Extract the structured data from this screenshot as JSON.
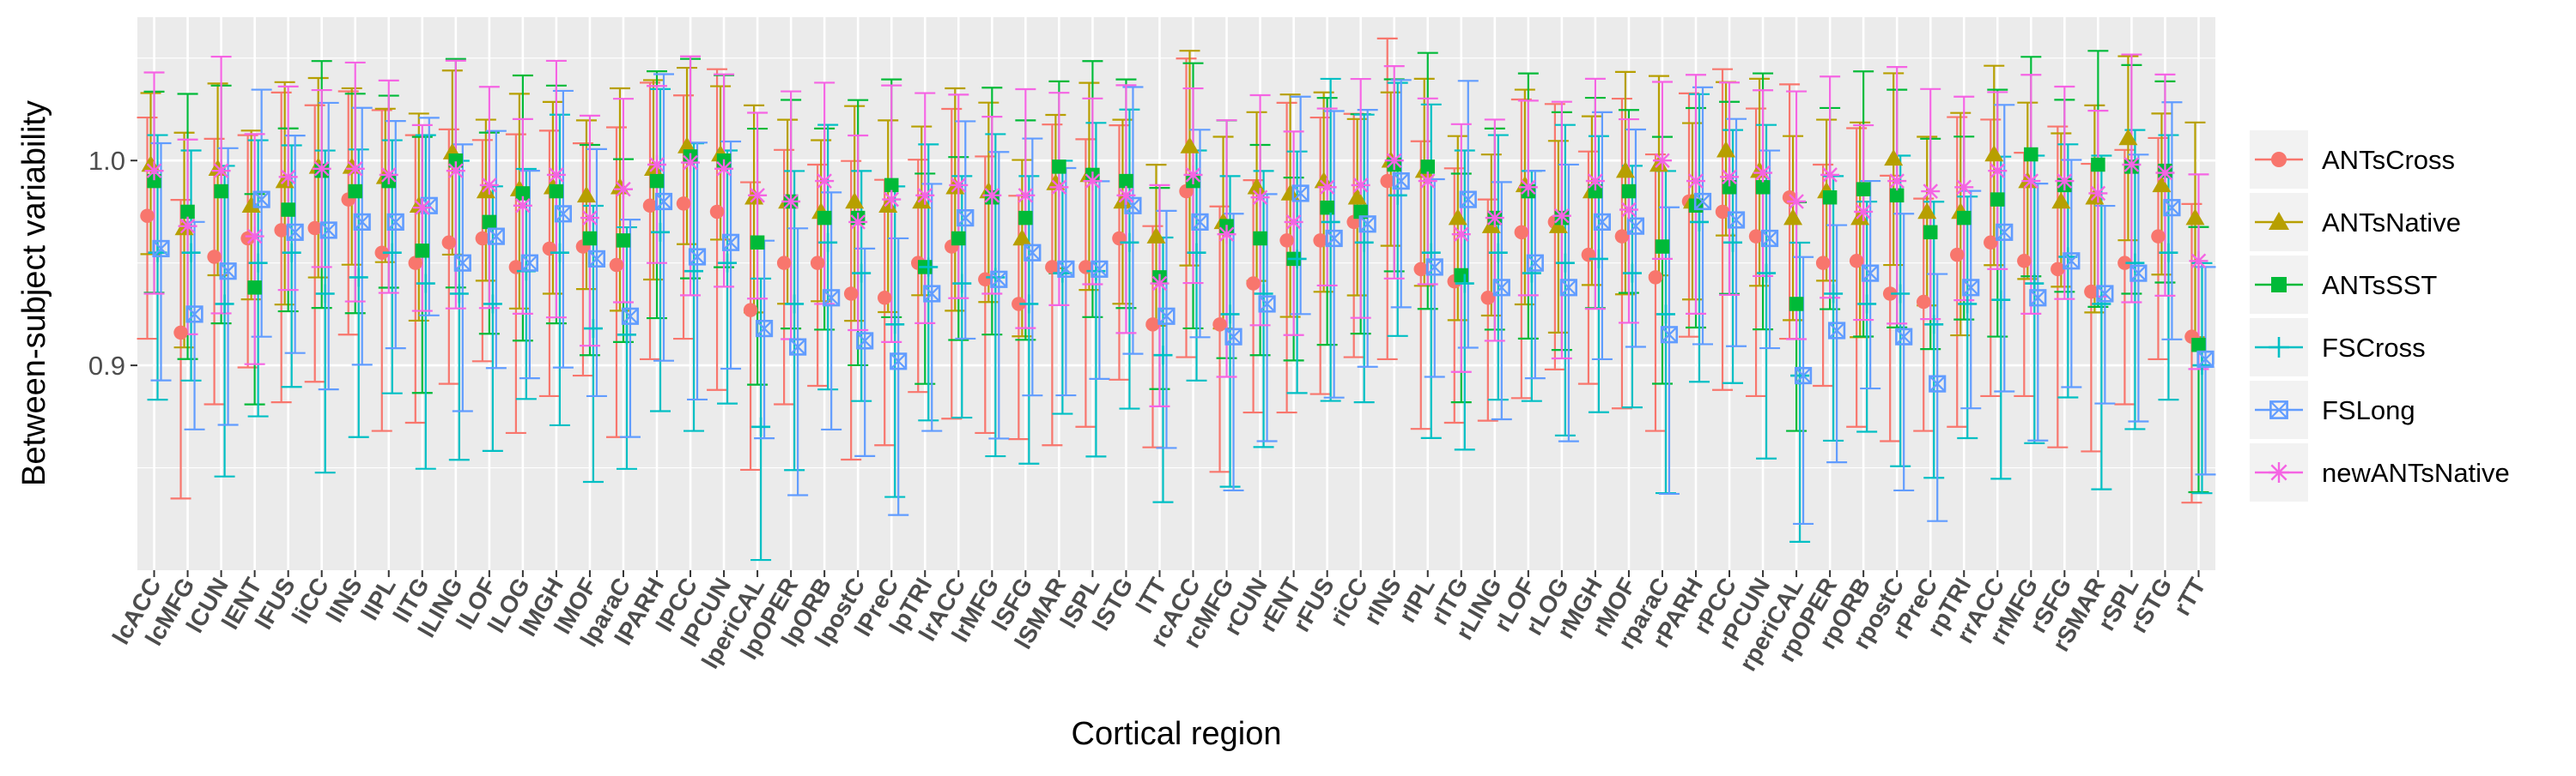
{
  "chart_data": {
    "type": "scatter",
    "xlabel": "Cortical region",
    "ylabel": "Between-subject variability",
    "ylim": [
      0.8,
      1.07
    ],
    "yticks": [
      0.9,
      1.0
    ],
    "yticklabels": [
      "0.9",
      "1.0"
    ],
    "grid": true,
    "legend_position": "right",
    "error_bars": true,
    "categories": [
      "lcACC",
      "lcMFG",
      "lCUN",
      "lENT",
      "lFUS",
      "liCC",
      "lINS",
      "lIPL",
      "lITG",
      "lLING",
      "lLOF",
      "lLOG",
      "lMGH",
      "lMOF",
      "lparaC",
      "lPARH",
      "lPCC",
      "lPCUN",
      "lperiCAL",
      "lpOPER",
      "lpORB",
      "lpostC",
      "lPreC",
      "lpTRI",
      "lrACC",
      "lrMFG",
      "lSFG",
      "lSMAR",
      "lSPL",
      "lSTG",
      "lTT",
      "rcACC",
      "rcMFG",
      "rCUN",
      "rENT",
      "rFUS",
      "riCC",
      "rINS",
      "rIPL",
      "rITG",
      "rLING",
      "rLOF",
      "rLOG",
      "rMGH",
      "rMOF",
      "rparaC",
      "rPARH",
      "rPCC",
      "rPCUN",
      "rperiCAL",
      "rpOPER",
      "rpORB",
      "rpostC",
      "rPreC",
      "rpTRI",
      "rrACC",
      "rrMFG",
      "rSFG",
      "rSMAR",
      "rSPL",
      "rSTG",
      "rTT"
    ],
    "series": [
      {
        "name": "ANTsCross",
        "color": "#F8766D",
        "marker": "circle",
        "values": [
          0.973,
          0.916,
          0.953,
          0.962,
          0.966,
          0.967,
          0.981,
          0.955,
          0.95,
          0.96,
          0.962,
          0.948,
          0.957,
          0.958,
          0.949,
          0.978,
          0.979,
          0.975,
          0.927,
          0.95,
          0.95,
          0.935,
          0.933,
          0.95,
          0.958,
          0.942,
          0.93,
          0.948,
          0.948,
          0.962,
          0.92,
          0.985,
          0.92,
          0.94,
          0.961,
          0.961,
          0.97,
          0.99,
          0.947,
          0.941,
          0.933,
          0.965,
          0.97,
          0.954,
          0.963,
          0.943,
          0.98,
          0.975,
          0.963,
          0.982,
          0.95,
          0.951,
          0.935,
          0.931,
          0.954,
          0.96,
          0.951,
          0.947,
          0.936,
          0.95,
          0.963,
          0.914
        ]
      },
      {
        "name": "ANTsNative",
        "color": "#B79F00",
        "marker": "triangle",
        "values": [
          0.998,
          0.967,
          0.996,
          0.978,
          0.99,
          0.997,
          0.997,
          0.992,
          0.978,
          1.004,
          0.985,
          0.986,
          0.987,
          0.983,
          0.987,
          0.996,
          1.007,
          1.003,
          0.982,
          0.98,
          0.975,
          0.98,
          0.978,
          0.98,
          0.987,
          0.985,
          0.962,
          0.989,
          0.993,
          0.98,
          0.963,
          1.007,
          0.97,
          0.987,
          0.984,
          0.99,
          0.982,
          1.0,
          0.995,
          0.972,
          0.968,
          0.988,
          0.968,
          0.985,
          0.995,
          0.998,
          0.98,
          1.005,
          0.995,
          0.972,
          0.985,
          0.972,
          1.001,
          0.975,
          0.975,
          1.003,
          0.99,
          0.98,
          0.982,
          1.011,
          0.988,
          0.972
        ]
      },
      {
        "name": "ANTsSST",
        "color": "#00BA38",
        "marker": "square",
        "values": [
          0.99,
          0.975,
          0.985,
          0.938,
          0.976,
          0.995,
          0.985,
          0.99,
          0.956,
          1.0,
          0.97,
          0.984,
          0.985,
          0.962,
          0.961,
          0.99,
          1.002,
          1.0,
          0.96,
          0.98,
          0.972,
          0.972,
          0.988,
          0.948,
          0.962,
          0.982,
          0.972,
          0.997,
          0.993,
          0.99,
          0.943,
          0.99,
          0.968,
          0.962,
          0.952,
          0.977,
          0.975,
          0.998,
          0.997,
          0.944,
          0.972,
          0.985,
          0.972,
          0.985,
          0.985,
          0.958,
          0.978,
          0.987,
          0.987,
          0.93,
          0.982,
          0.986,
          0.983,
          0.965,
          0.972,
          0.981,
          1.003,
          0.988,
          0.998,
          0.997,
          0.995,
          0.91
        ]
      },
      {
        "name": "FSCross",
        "color": "#00BFC4",
        "marker": "plus",
        "values": [
          0.955,
          0.955,
          0.93,
          0.95,
          0.955,
          0.935,
          0.943,
          0.955,
          0.94,
          0.935,
          0.93,
          0.946,
          0.955,
          0.918,
          0.915,
          0.965,
          0.946,
          0.95,
          0.87,
          0.93,
          0.96,
          0.945,
          0.92,
          0.948,
          0.94,
          0.943,
          0.93,
          0.945,
          0.946,
          0.96,
          0.905,
          0.955,
          0.925,
          0.935,
          0.952,
          0.97,
          0.96,
          0.983,
          0.955,
          0.94,
          0.955,
          0.945,
          0.95,
          0.952,
          0.945,
          0.925,
          0.97,
          0.96,
          0.945,
          0.895,
          0.935,
          0.93,
          0.935,
          0.92,
          0.93,
          0.932,
          0.94,
          0.953,
          0.93,
          0.95,
          0.955,
          0.9
        ]
      },
      {
        "name": "FSLong",
        "color": "#619CFF",
        "marker": "square-x",
        "values": [
          0.957,
          0.925,
          0.946,
          0.981,
          0.965,
          0.966,
          0.97,
          0.97,
          0.978,
          0.95,
          0.963,
          0.95,
          0.974,
          0.952,
          0.924,
          0.98,
          0.953,
          0.96,
          0.918,
          0.909,
          0.933,
          0.912,
          0.902,
          0.935,
          0.972,
          0.942,
          0.955,
          0.947,
          0.947,
          0.978,
          0.924,
          0.97,
          0.914,
          0.93,
          0.984,
          0.962,
          0.969,
          0.99,
          0.948,
          0.981,
          0.938,
          0.95,
          0.938,
          0.97,
          0.968,
          0.915,
          0.98,
          0.971,
          0.962,
          0.895,
          0.917,
          0.945,
          0.914,
          0.891,
          0.938,
          0.965,
          0.933,
          0.951,
          0.935,
          0.945,
          0.977,
          0.903
        ]
      },
      {
        "name": "newANTsNative",
        "color": "#F564E3",
        "marker": "asterisk",
        "values": [
          0.995,
          0.968,
          0.995,
          0.963,
          0.992,
          0.996,
          0.996,
          0.993,
          0.977,
          0.995,
          0.988,
          0.978,
          0.993,
          0.972,
          0.986,
          0.998,
          0.999,
          0.996,
          0.983,
          0.98,
          0.99,
          0.97,
          0.981,
          0.983,
          0.988,
          0.983,
          0.983,
          0.987,
          0.99,
          0.983,
          0.94,
          0.993,
          0.964,
          0.982,
          0.97,
          0.987,
          0.988,
          1.0,
          0.99,
          0.964,
          0.972,
          0.987,
          0.973,
          0.99,
          0.976,
          1.0,
          0.99,
          0.992,
          0.994,
          0.98,
          0.993,
          0.975,
          0.99,
          0.985,
          0.987,
          0.995,
          0.99,
          0.99,
          0.984,
          0.998,
          0.994,
          0.951
        ]
      }
    ]
  }
}
